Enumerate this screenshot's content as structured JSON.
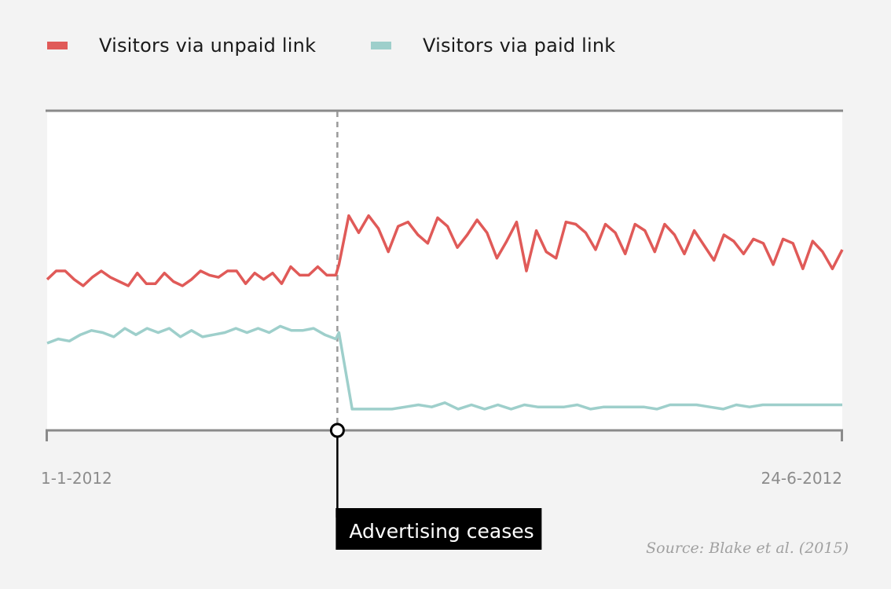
{
  "chart_data": {
    "type": "line",
    "x_labels": [
      "1-1-2012",
      "24-6-2012"
    ],
    "xlim": [
      "2012-01-01",
      "2012-06-24"
    ],
    "y_axis": "unlabeled",
    "grid": false,
    "legend_position": "top-left",
    "series": [
      {
        "name": "Visitors via unpaid link",
        "color": "#e05a58",
        "values": [
          7.1,
          7.5,
          7.5,
          7.1,
          6.8,
          7.2,
          7.5,
          7.2,
          7.0,
          6.8,
          7.4,
          6.9,
          6.9,
          7.4,
          7.0,
          6.8,
          7.1,
          7.5,
          7.3,
          7.2,
          7.5,
          7.5,
          6.9,
          7.4,
          7.1,
          7.4,
          6.9,
          7.7,
          7.3,
          7.3,
          7.7,
          7.3,
          7.3,
          7.8,
          10.1,
          9.3,
          10.1,
          9.5,
          8.4,
          9.6,
          9.8,
          9.2,
          8.8,
          10.0,
          9.6,
          8.6,
          9.2,
          9.9,
          9.3,
          8.1,
          8.9,
          9.8,
          7.5,
          9.4,
          8.4,
          8.1,
          9.8,
          9.7,
          9.3,
          8.5,
          9.7,
          9.3,
          8.3,
          9.7,
          9.4,
          8.4,
          9.7,
          9.2,
          8.3,
          9.4,
          8.7,
          8.0,
          9.2,
          8.9,
          8.3,
          9.0,
          8.8,
          7.8,
          9.0,
          8.8,
          7.6,
          8.9,
          8.4,
          7.6,
          8.5
        ]
      },
      {
        "name": "Visitors via paid link",
        "color": "#9ecfcb",
        "values": [
          4.1,
          4.3,
          4.2,
          4.5,
          4.7,
          4.6,
          4.4,
          4.8,
          4.5,
          4.8,
          4.6,
          4.8,
          4.4,
          4.7,
          4.4,
          4.5,
          4.6,
          4.8,
          4.6,
          4.8,
          4.6,
          4.9,
          4.7,
          4.7,
          4.8,
          4.5,
          4.3,
          4.6,
          1.0,
          1.0,
          1.0,
          1.0,
          1.1,
          1.2,
          1.1,
          1.3,
          1.0,
          1.2,
          1.0,
          1.2,
          1.0,
          1.2,
          1.1,
          1.1,
          1.1,
          1.2,
          1.0,
          1.1,
          1.1,
          1.1,
          1.1,
          1.0,
          1.2,
          1.2,
          1.2,
          1.1,
          1.0,
          1.2,
          1.1,
          1.2,
          1.2,
          1.2,
          1.2,
          1.2,
          1.2,
          1.2
        ]
      }
    ],
    "annotation": {
      "label": "Advertising ceases",
      "fraction": 0.365
    }
  },
  "source": "Source: Blake et al. (2015)"
}
